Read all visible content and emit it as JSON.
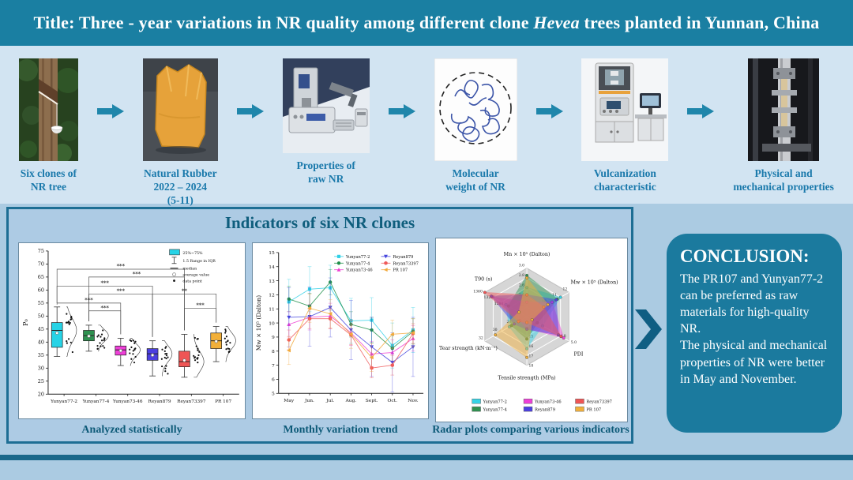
{
  "title": {
    "prefix": "Title: Three - year variations in NR quality among different clone ",
    "em": "Hevea",
    "suffix": " trees planted in Yunnan, China"
  },
  "workflow": {
    "steps": [
      {
        "icon": "rubber-tree-tapping",
        "label": "Six clones of\nNR tree"
      },
      {
        "icon": "natural-rubber-bale",
        "label": "Natural Rubber\n2022 – 2024\n(5-11)"
      },
      {
        "icon": "mooney-viscometer",
        "label": "Properties of\nraw NR"
      },
      {
        "icon": "polymer-chains",
        "label": "Molecular\nweight of NR"
      },
      {
        "icon": "vulcanization-machine",
        "label": "Vulcanization\ncharacteristic"
      },
      {
        "icon": "tensile-tester",
        "label": "Physical and\nmechanical properties"
      }
    ]
  },
  "panel": {
    "title": "Indicators of six NR clones",
    "captions": [
      "Analyzed statistically",
      "Monthly variation trend",
      "Radar plots comparing various indicators"
    ]
  },
  "conclusion": {
    "title": "CONCLUSION:",
    "body": "The PR107 and Yunyan77-2 can be preferred as raw materials for high-quality NR.\nThe physical and mechanical properties of NR were better in May and November."
  },
  "chart_data": [
    {
      "type": "box",
      "ylabel": "P₀",
      "ylim": [
        20,
        75
      ],
      "ytick_step": 5,
      "categories": [
        "Yunyan77-2",
        "Yunyan77-4",
        "Yunyan73-46",
        "Reyan879",
        "Reyan73397",
        "PR 107"
      ],
      "colors": [
        "#26d3e6",
        "#2f9150",
        "#ee3fd8",
        "#4b3fe0",
        "#ef5555",
        "#f2b03a"
      ],
      "boxes": [
        {
          "whislo": 34.5,
          "q1": 38.0,
          "med": 44.5,
          "q3": 47.5,
          "whishi": 53.5,
          "mean": 43.5
        },
        {
          "whislo": 36.5,
          "q1": 40.5,
          "med": 42.5,
          "q3": 44.5,
          "whishi": 46.5,
          "mean": 42.3
        },
        {
          "whislo": 31.0,
          "q1": 35.0,
          "med": 37.0,
          "q3": 38.5,
          "whishi": 41.5,
          "mean": 36.7
        },
        {
          "whislo": 27.0,
          "q1": 33.0,
          "med": 35.5,
          "q3": 37.5,
          "whishi": 40.5,
          "mean": 35.0
        },
        {
          "whislo": 26.5,
          "q1": 30.5,
          "med": 32.5,
          "q3": 36.5,
          "whishi": 43.0,
          "mean": 33.0
        },
        {
          "whislo": 32.5,
          "q1": 37.5,
          "med": 40.5,
          "q3": 43.5,
          "whishi": 46.0,
          "mean": 40.3
        }
      ],
      "legend": [
        "25%~75%",
        "1.5 Range in IQR",
        "median",
        "average value",
        "data point"
      ],
      "significance": [
        {
          "a": 0,
          "b": 4,
          "y": 68.0,
          "label": "***"
        },
        {
          "a": 1,
          "b": 4,
          "y": 65.0,
          "label": "***"
        },
        {
          "a": 0,
          "b": 3,
          "y": 61.5,
          "label": "***"
        },
        {
          "a": 1,
          "b": 3,
          "y": 58.5,
          "label": "***"
        },
        {
          "a": 3,
          "b": 5,
          "y": 58.5,
          "label": "**"
        },
        {
          "a": 0,
          "b": 2,
          "y": 55.0,
          "label": "***"
        },
        {
          "a": 1,
          "b": 2,
          "y": 52.0,
          "label": "***"
        },
        {
          "a": 4,
          "b": 5,
          "y": 53.0,
          "label": "***"
        }
      ]
    },
    {
      "type": "line",
      "ylabel": "Mw × 10⁵ (Dalton)",
      "ylim": [
        5,
        15
      ],
      "x": [
        "May",
        "Jun.",
        "Jul.",
        "Aug.",
        "Sept.",
        "Oct.",
        "Nov."
      ],
      "series": [
        {
          "name": "Yunyan77-2",
          "color": "#2fd0e6",
          "marker": "square",
          "values": [
            11.5,
            12.4,
            12.5,
            10.15,
            10.2,
            8.4,
            9.5
          ],
          "err": 1.6
        },
        {
          "name": "Yunyan77-4",
          "color": "#1f8f4a",
          "marker": "circle",
          "values": [
            11.7,
            11.2,
            12.9,
            9.9,
            9.5,
            8.2,
            9.4
          ],
          "err": 0.9
        },
        {
          "name": "Yunyan73-46",
          "color": "#ee3ed2",
          "marker": "triangle-up",
          "values": [
            9.9,
            10.4,
            10.5,
            9.3,
            7.8,
            7.9,
            8.9
          ],
          "err": 0.9
        },
        {
          "name": "Reyan879",
          "color": "#4343dd",
          "marker": "triangle-down",
          "values": [
            10.4,
            10.45,
            11.1,
            9.5,
            8.3,
            7.2,
            8.3
          ],
          "err": 2.1
        },
        {
          "name": "Reyan73397",
          "color": "#ef5a5a",
          "marker": "hexagon",
          "values": [
            8.8,
            10.3,
            10.3,
            9.15,
            6.8,
            7.0,
            9.25
          ],
          "err": 0.7
        },
        {
          "name": "PR 107",
          "color": "#f2a93b",
          "marker": "triangle-left",
          "values": [
            8.05,
            11.05,
            10.65,
            9.2,
            7.55,
            9.2,
            9.3
          ],
          "err": 1.0
        }
      ]
    },
    {
      "type": "radar",
      "axes": [
        {
          "label": "Mn × 10⁵ (Dalton)",
          "min": 2.0,
          "max": 3.0,
          "ticks": [
            "3.0",
            "2.8",
            "2.6",
            "2.4",
            "2.2"
          ]
        },
        {
          "label": "Mw × 10⁵ (Dalton)",
          "min": 8,
          "max": 12,
          "ticks": [
            "12",
            "11",
            "10"
          ]
        },
        {
          "label": "PDI",
          "min": 4.2,
          "max": 5.0,
          "ticks": [
            "5.0",
            "4.8"
          ]
        },
        {
          "label": "Tensile strength (MPa)",
          "min": 13,
          "max": 18,
          "ticks": [
            "18",
            "17",
            "16",
            "15",
            "14"
          ]
        },
        {
          "label": "Tear strength (kN·m⁻¹)",
          "min": 26,
          "max": 32,
          "ticks": [
            "32",
            "30",
            "28"
          ]
        },
        {
          "label": "T90 (s)",
          "min": 1200,
          "max": 1360,
          "ticks": [
            "1360",
            "1320",
            "1280"
          ]
        }
      ],
      "series": [
        {
          "name": "Yunyan77-2",
          "color": "#35d3e6",
          "values": [
            2.6,
            11.2,
            4.5,
            16.3,
            28.5,
            1280
          ]
        },
        {
          "name": "Yunyan77-4",
          "color": "#2f9150",
          "values": [
            2.85,
            10.9,
            4.4,
            15.3,
            28.2,
            1270
          ]
        },
        {
          "name": "Yunyan73-46",
          "color": "#ee3fd8",
          "values": [
            2.3,
            10.4,
            4.9,
            14.2,
            27.0,
            1330
          ]
        },
        {
          "name": "Reyan879",
          "color": "#4b3fe0",
          "values": [
            2.45,
            10.8,
            4.8,
            14.3,
            27.8,
            1335
          ]
        },
        {
          "name": "Reyan73397",
          "color": "#ef5555",
          "values": [
            2.45,
            9.6,
            4.85,
            13.6,
            27.2,
            1360
          ]
        },
        {
          "name": "PR 107",
          "color": "#f2b03a",
          "values": [
            2.8,
            10.0,
            4.3,
            17.2,
            30.5,
            1230
          ]
        }
      ]
    }
  ]
}
